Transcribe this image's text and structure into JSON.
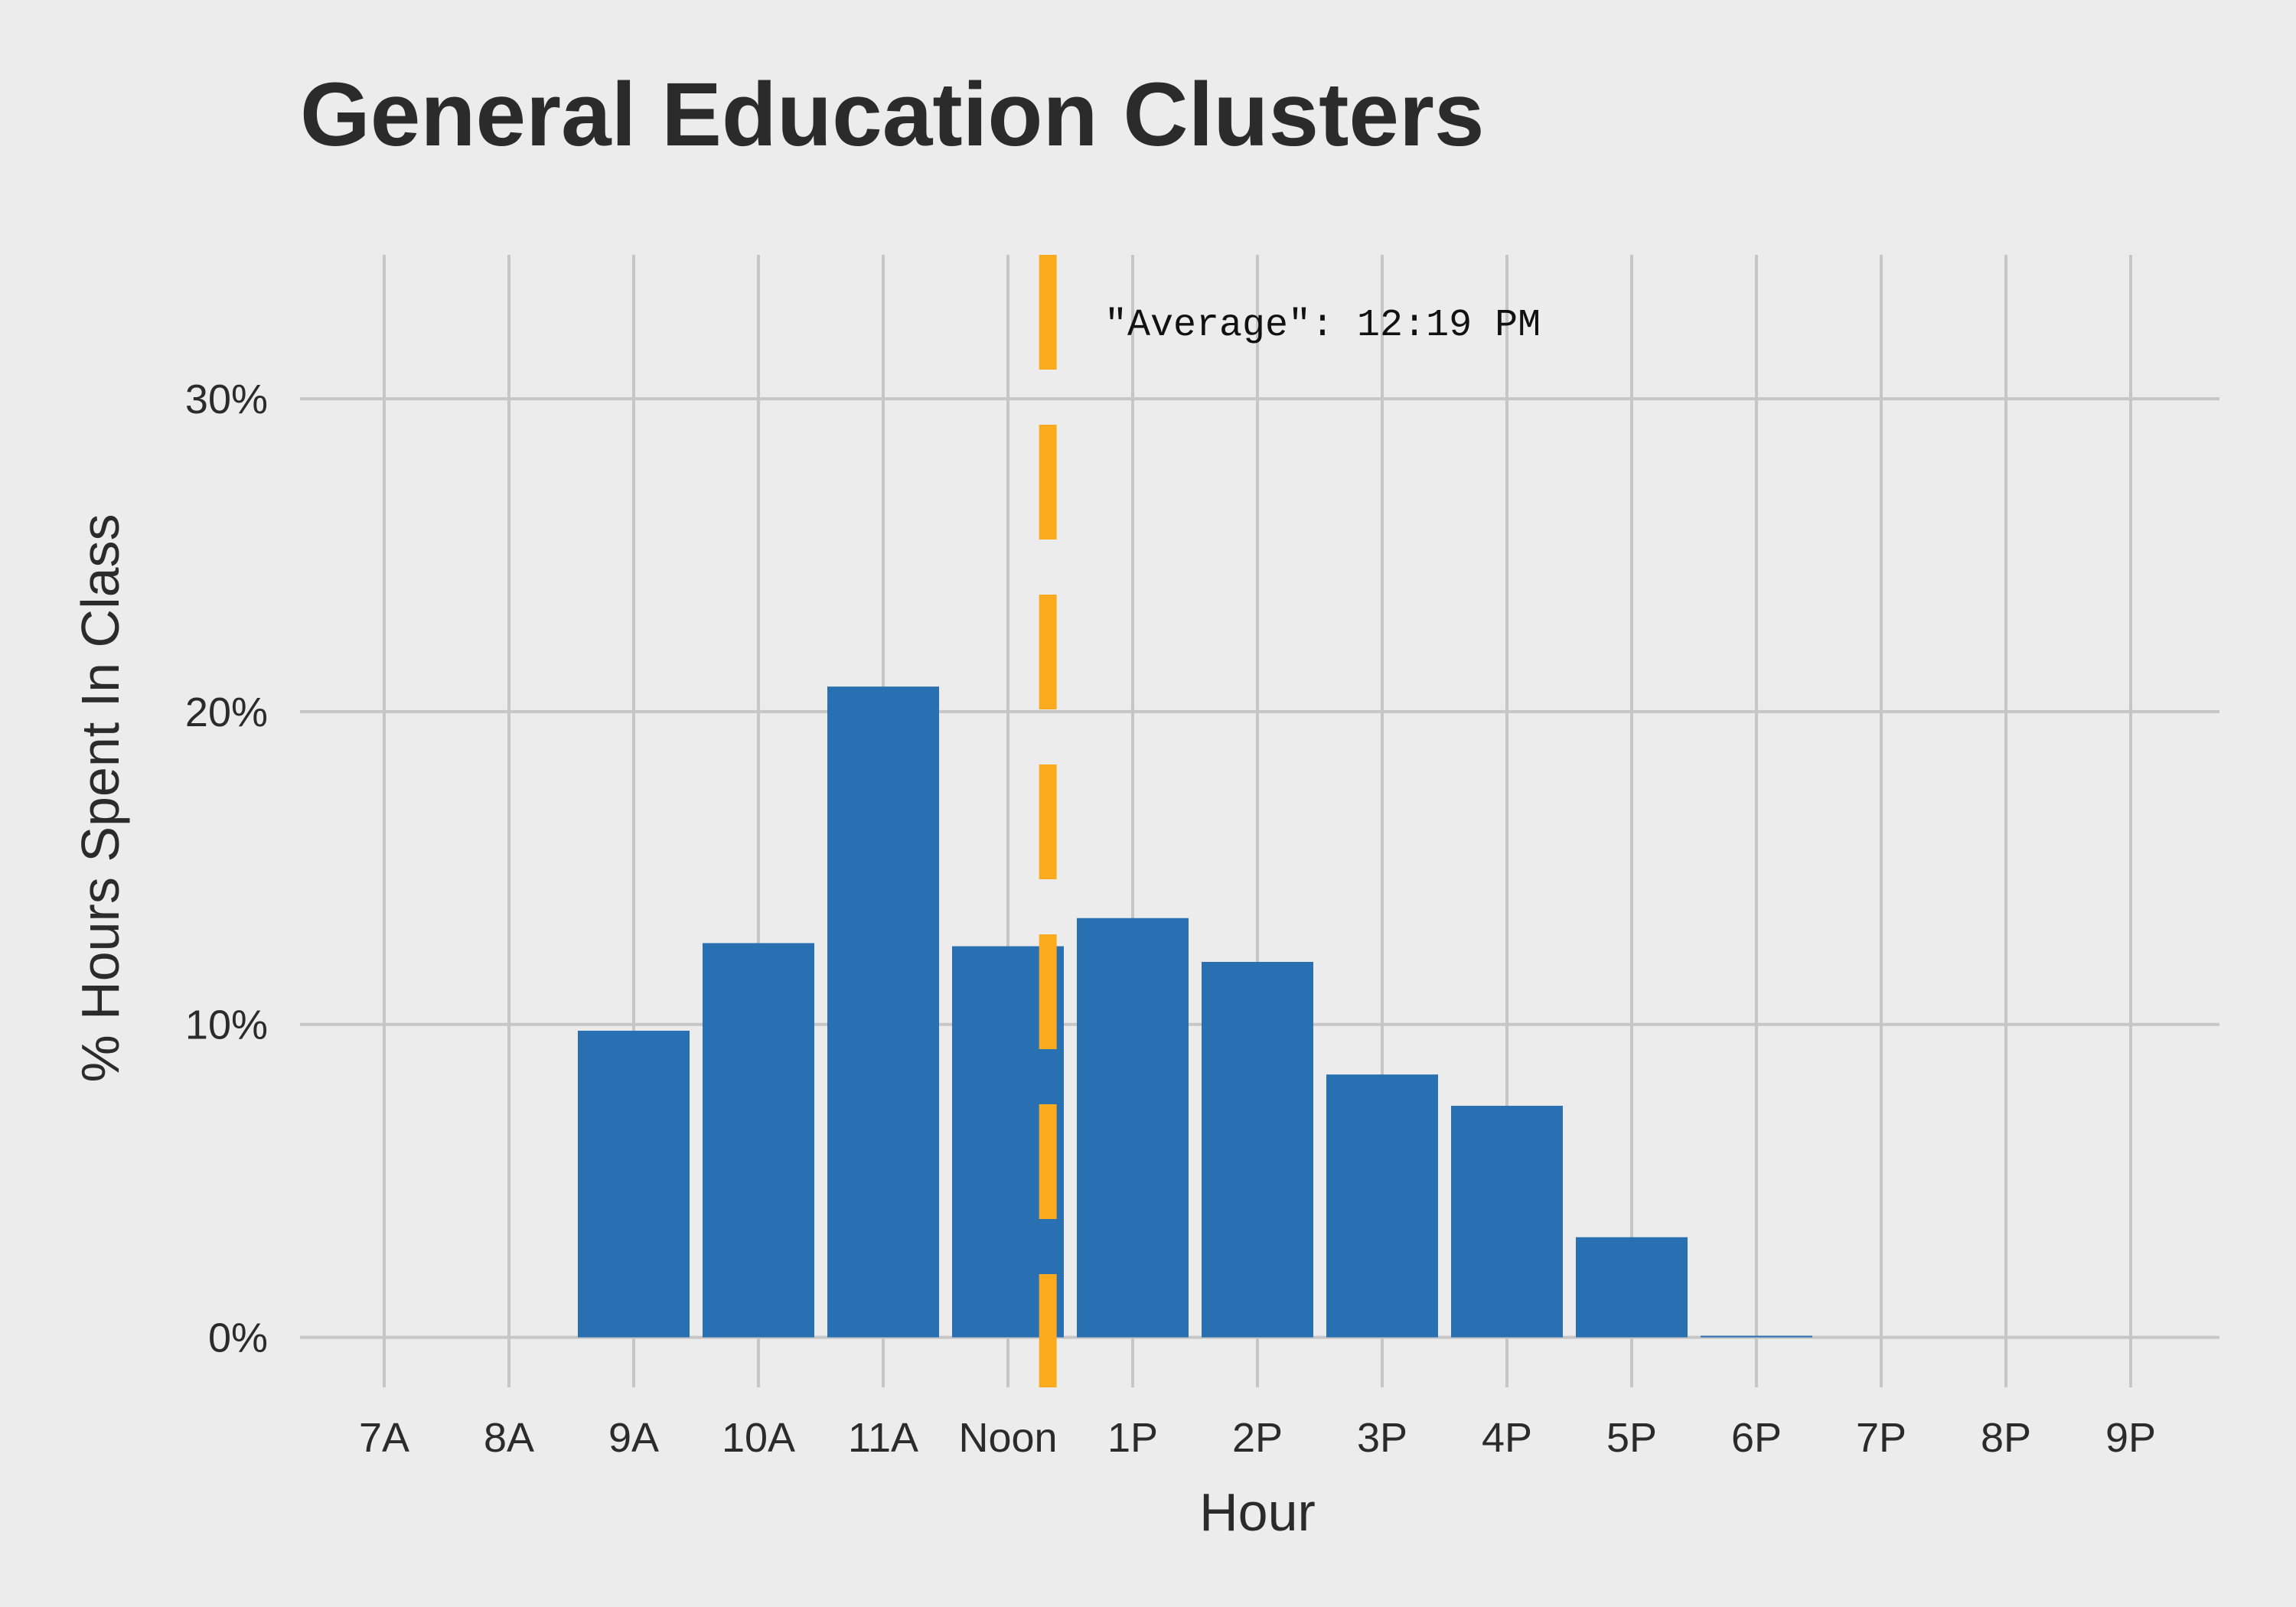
{
  "chart_data": {
    "type": "bar",
    "title": "General Education Clusters",
    "xlabel": "Hour",
    "ylabel": "% Hours Spent In Class",
    "categories": [
      "7A",
      "8A",
      "9A",
      "10A",
      "11A",
      "Noon",
      "1P",
      "2P",
      "3P",
      "4P",
      "5P",
      "6P",
      "7P",
      "8P",
      "9P"
    ],
    "values": [
      0,
      0,
      9.8,
      12.6,
      20.8,
      12.5,
      13.4,
      12.0,
      8.4,
      7.4,
      3.2,
      0.05,
      0,
      0,
      0
    ],
    "ylim": [
      -1.6,
      34.6
    ],
    "y_ticks": [
      0,
      10,
      20,
      30
    ],
    "y_tick_labels": [
      "0%",
      "10%",
      "20%",
      "30%"
    ],
    "grid": true,
    "bar_color": "#2870b1",
    "annotation": {
      "text": "\"Average\": 12:19 PM",
      "x_hour": 12.32,
      "line_color": "#fcab1f",
      "line_style": "dashed"
    }
  }
}
